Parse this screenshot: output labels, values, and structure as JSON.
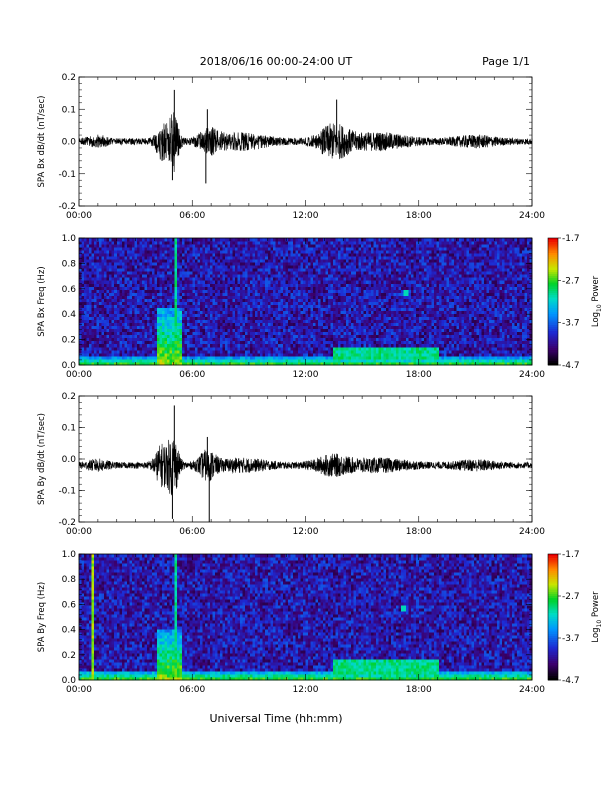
{
  "header": {
    "title": "2018/06/16  00:00-24:00 UT",
    "page": "Page 1/1"
  },
  "xlabel": "Universal Time (hh:mm)",
  "x_ticks": [
    "00:00",
    "06:00",
    "12:00",
    "18:00",
    "24:00"
  ],
  "chart_data": [
    {
      "type": "line",
      "ylabel": "SPA Bx dB/dt (nT/sec)",
      "x_range_hours": [
        0,
        24
      ],
      "ylim": [
        -0.2,
        0.2
      ],
      "y_ticks": [
        0.2,
        0.1,
        0.0,
        -0.1,
        -0.2
      ],
      "y_tick_labels": [
        "0.2",
        "0.1",
        "0.0",
        "-0.1",
        "-0.2"
      ],
      "baseline": 0.0,
      "noise_amplitude": 0.01,
      "bursts": [
        {
          "center": 1.0,
          "width": 0.6,
          "amp": 0.012
        },
        {
          "center": 4.4,
          "width": 0.35,
          "amp": 0.05
        },
        {
          "center": 5.0,
          "width": 0.3,
          "amp": 0.085
        },
        {
          "center": 6.9,
          "width": 0.6,
          "amp": 0.03
        },
        {
          "center": 8.6,
          "width": 1.5,
          "amp": 0.02
        },
        {
          "center": 13.5,
          "width": 0.9,
          "amp": 0.045
        },
        {
          "center": 15.8,
          "width": 1.8,
          "amp": 0.02
        },
        {
          "center": 21.0,
          "width": 1.2,
          "amp": 0.012
        }
      ],
      "spikes": [
        {
          "x": 5.05,
          "y": 0.16
        },
        {
          "x": 4.4,
          "y": -0.06
        },
        {
          "x": 4.95,
          "y": -0.12
        },
        {
          "x": 6.8,
          "y": 0.1
        },
        {
          "x": 6.72,
          "y": -0.13
        },
        {
          "x": 13.65,
          "y": 0.13
        }
      ]
    },
    {
      "type": "heatmap",
      "ylabel": "SPA Bx Freq (Hz)",
      "x_range_hours": [
        0,
        24
      ],
      "ylim": [
        0,
        1.0
      ],
      "y_ticks": [
        1.0,
        0.8,
        0.6,
        0.4,
        0.2,
        0.0
      ],
      "y_tick_labels": [
        "1.0",
        "0.8",
        "0.6",
        "0.4",
        "0.2",
        "0.0"
      ],
      "colorbar": {
        "label": "Log10 Power",
        "label_main": "Log",
        "label_sub": "10",
        "label_rest": " Power",
        "range": [
          -4.7,
          -1.7
        ],
        "ticks": [
          -1.7,
          -2.7,
          -3.7,
          -4.7
        ],
        "tick_labels": [
          "-1.7",
          "-2.7",
          "-3.7",
          "-4.7"
        ],
        "colormap": "rainbow"
      },
      "features": [
        {
          "kind": "low_freq_band",
          "x_range": [
            0,
            24
          ],
          "f_max": 0.06,
          "level": -2.6
        },
        {
          "kind": "burst",
          "x_range": [
            4.1,
            5.4
          ],
          "f_max": 0.45,
          "level": -2.5
        },
        {
          "kind": "vertical_line",
          "x": 5.1,
          "level": -3.0
        },
        {
          "kind": "enhancement",
          "x_range": [
            13.5,
            19.0
          ],
          "f_range": [
            0.05,
            0.15
          ],
          "level": -3.0
        },
        {
          "kind": "dot",
          "x": 17.3,
          "f": 0.57,
          "level": -3.1
        }
      ]
    },
    {
      "type": "line",
      "ylabel": "SPA By dB/dt (nT/sec)",
      "x_range_hours": [
        0,
        24
      ],
      "ylim": [
        -0.2,
        0.2
      ],
      "y_ticks": [
        0.2,
        0.1,
        0.0,
        -0.1,
        -0.2
      ],
      "y_tick_labels": [
        "0.2",
        "0.1",
        "0.0",
        "-0.1",
        "-0.2"
      ],
      "baseline": -0.02,
      "noise_amplitude": 0.01,
      "bursts": [
        {
          "center": 1.0,
          "width": 0.6,
          "amp": 0.012
        },
        {
          "center": 4.4,
          "width": 0.4,
          "amp": 0.06
        },
        {
          "center": 5.0,
          "width": 0.3,
          "amp": 0.09
        },
        {
          "center": 6.8,
          "width": 0.5,
          "amp": 0.04
        },
        {
          "center": 8.6,
          "width": 1.5,
          "amp": 0.015
        },
        {
          "center": 13.4,
          "width": 1.0,
          "amp": 0.025
        },
        {
          "center": 15.8,
          "width": 1.8,
          "amp": 0.015
        },
        {
          "center": 21.0,
          "width": 1.2,
          "amp": 0.01
        }
      ],
      "spikes": [
        {
          "x": 5.05,
          "y": 0.17
        },
        {
          "x": 4.95,
          "y": -0.19
        },
        {
          "x": 6.9,
          "y": -0.2
        },
        {
          "x": 6.8,
          "y": 0.07
        }
      ]
    },
    {
      "type": "heatmap",
      "ylabel": "SPA By Freq (Hz)",
      "x_range_hours": [
        0,
        24
      ],
      "ylim": [
        0,
        1.0
      ],
      "y_ticks": [
        1.0,
        0.8,
        0.6,
        0.4,
        0.2,
        0.0
      ],
      "y_tick_labels": [
        "1.0",
        "0.8",
        "0.6",
        "0.4",
        "0.2",
        "0.0"
      ],
      "colorbar": {
        "label": "Log10 Power",
        "label_main": "Log",
        "label_sub": "10",
        "label_rest": " Power",
        "range": [
          -4.7,
          -1.7
        ],
        "ticks": [
          -1.7,
          -2.7,
          -3.7,
          -4.7
        ],
        "tick_labels": [
          "-1.7",
          "-2.7",
          "-3.7",
          "-4.7"
        ],
        "colormap": "rainbow"
      },
      "features": [
        {
          "kind": "low_freq_band",
          "x_range": [
            0,
            24
          ],
          "f_max": 0.07,
          "level": -2.6
        },
        {
          "kind": "vertical_line",
          "x": 0.75,
          "level": -2.5
        },
        {
          "kind": "burst",
          "x_range": [
            4.1,
            5.4
          ],
          "f_max": 0.4,
          "level": -2.5
        },
        {
          "kind": "vertical_line",
          "x": 5.1,
          "level": -3.0
        },
        {
          "kind": "enhancement",
          "x_range": [
            13.5,
            19.0
          ],
          "f_range": [
            0.05,
            0.17
          ],
          "level": -3.0
        },
        {
          "kind": "dot",
          "x": 17.2,
          "f": 0.57,
          "level": -3.1
        }
      ]
    }
  ]
}
